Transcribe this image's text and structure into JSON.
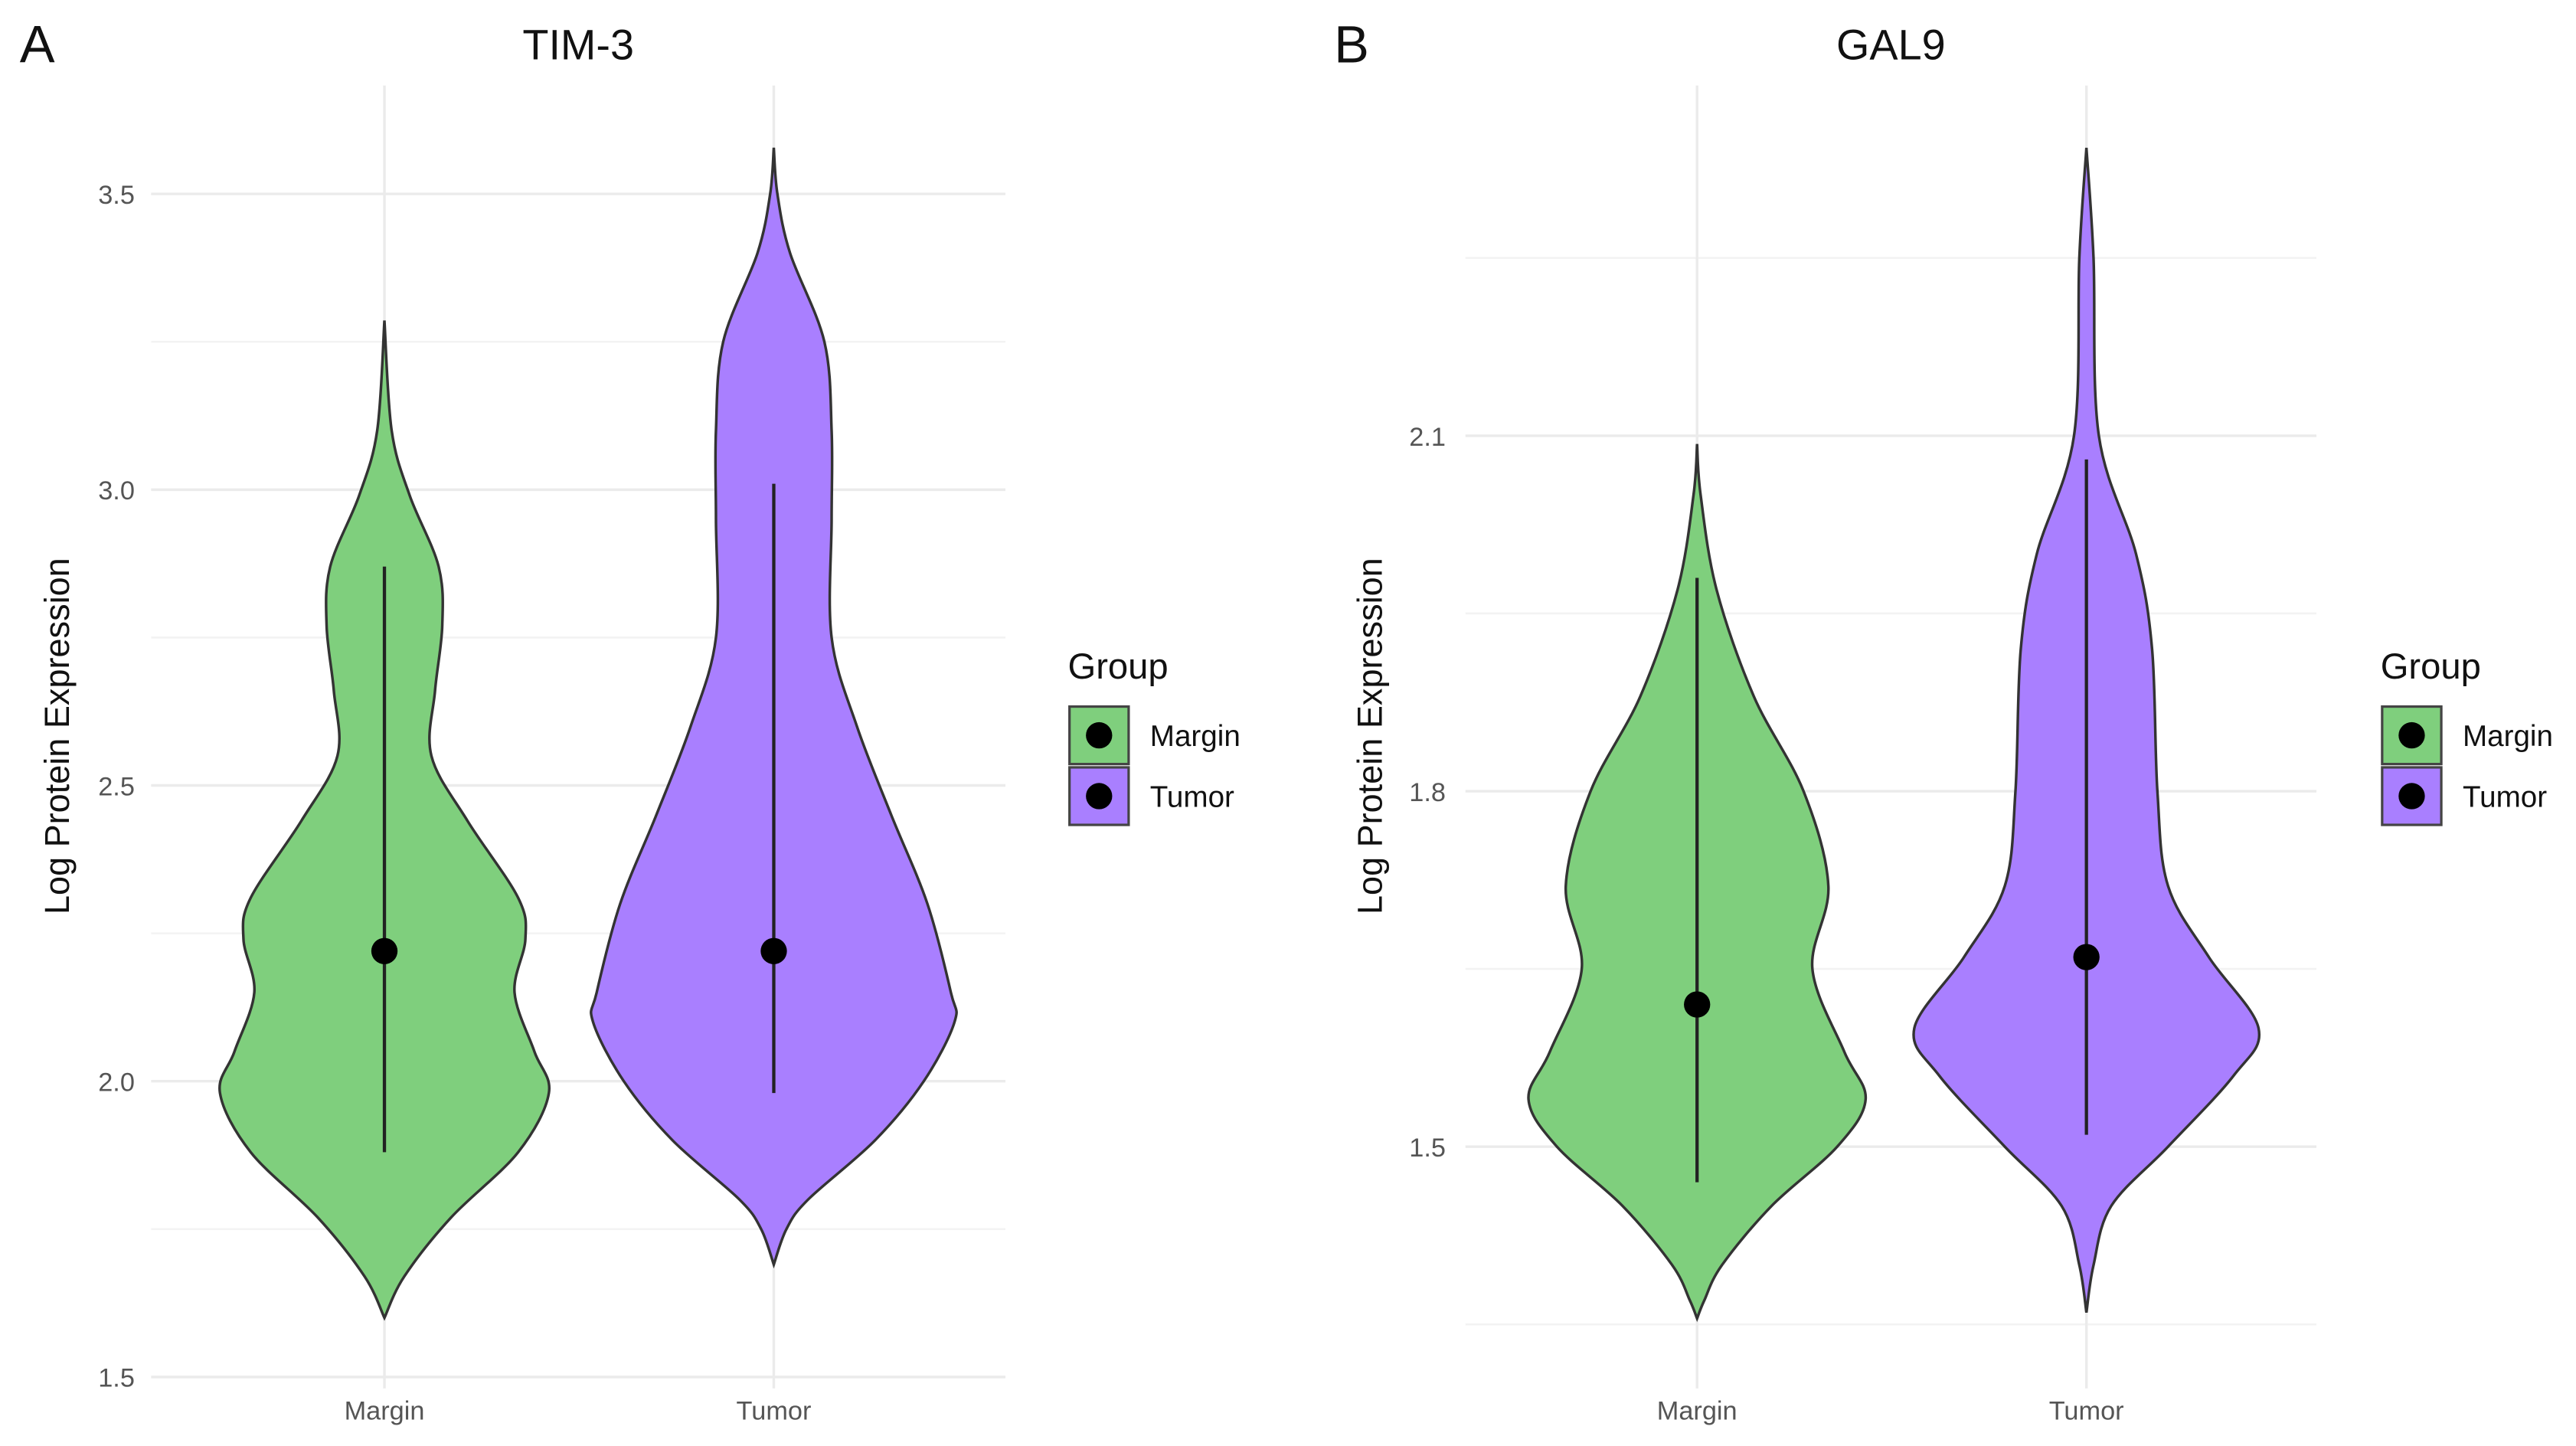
{
  "colors": {
    "Margin": "#7fcf7d",
    "Tumor": "#a97fff",
    "outline": "#333333",
    "point": "#000000"
  },
  "chart_data": [
    {
      "type": "violin",
      "panel_label": "A",
      "title": "TIM-3",
      "xlabel": "",
      "ylabel": "Log Protein Expression",
      "ylim": [
        1.5,
        3.5
      ],
      "yticks": [
        1.5,
        2.0,
        2.5,
        3.0,
        3.5
      ],
      "ytick_labels": [
        "1.5",
        "2.0",
        "2.5",
        "3.0",
        "3.5"
      ],
      "minor_yticks": [
        1.75,
        2.25,
        2.75,
        3.25
      ],
      "categories": [
        "Margin",
        "Tumor"
      ],
      "legend": {
        "title": "Group",
        "entries": [
          "Margin",
          "Tumor"
        ],
        "position": "right"
      },
      "series": [
        {
          "name": "Margin",
          "median": 2.22,
          "whisker": [
            1.88,
            2.87
          ],
          "profile": [
            [
              3.286,
              0
            ],
            [
              3.1,
              0.04
            ],
            [
              2.99,
              0.14
            ],
            [
              2.87,
              0.3
            ],
            [
              2.77,
              0.32
            ],
            [
              2.66,
              0.28
            ],
            [
              2.55,
              0.26
            ],
            [
              2.44,
              0.46
            ],
            [
              2.31,
              0.74
            ],
            [
              2.24,
              0.78
            ],
            [
              2.15,
              0.72
            ],
            [
              2.05,
              0.83
            ],
            [
              1.98,
              0.91
            ],
            [
              1.88,
              0.74
            ],
            [
              1.77,
              0.37
            ],
            [
              1.67,
              0.11
            ],
            [
              1.6,
              0
            ]
          ]
        },
        {
          "name": "Tumor",
          "median": 2.22,
          "whisker": [
            1.98,
            3.01
          ],
          "profile": [
            [
              3.578,
              0
            ],
            [
              3.5,
              0.02
            ],
            [
              3.4,
              0.09
            ],
            [
              3.25,
              0.28
            ],
            [
              3.1,
              0.32
            ],
            [
              2.95,
              0.32
            ],
            [
              2.75,
              0.32
            ],
            [
              2.6,
              0.46
            ],
            [
              2.45,
              0.65
            ],
            [
              2.3,
              0.85
            ],
            [
              2.15,
              0.98
            ],
            [
              2.1,
              1.0
            ],
            [
              2.0,
              0.83
            ],
            [
              1.9,
              0.56
            ],
            [
              1.8,
              0.19
            ],
            [
              1.75,
              0.07
            ],
            [
              1.69,
              0
            ]
          ]
        }
      ]
    },
    {
      "type": "violin",
      "panel_label": "B",
      "title": "GAL9",
      "xlabel": "",
      "ylabel": "Log Protein Expression",
      "ylim": [
        1.35,
        2.25
      ],
      "yticks": [
        1.5,
        1.8,
        2.1
      ],
      "ytick_labels": [
        "1.5",
        "1.8",
        "2.1"
      ],
      "minor_yticks": [
        1.35,
        1.65,
        1.95,
        2.25
      ],
      "categories": [
        "Margin",
        "Tumor"
      ],
      "legend": {
        "title": "Group",
        "entries": [
          "Margin",
          "Tumor"
        ],
        "position": "right"
      },
      "series": [
        {
          "name": "Margin",
          "median": 1.62,
          "whisker": [
            1.47,
            1.98
          ],
          "profile": [
            [
              2.093,
              0
            ],
            [
              2.05,
              0.02
            ],
            [
              1.97,
              0.11
            ],
            [
              1.88,
              0.32
            ],
            [
              1.8,
              0.6
            ],
            [
              1.72,
              0.74
            ],
            [
              1.65,
              0.65
            ],
            [
              1.58,
              0.83
            ],
            [
              1.54,
              0.95
            ],
            [
              1.5,
              0.79
            ],
            [
              1.45,
              0.42
            ],
            [
              1.4,
              0.14
            ],
            [
              1.37,
              0.04
            ],
            [
              1.355,
              0
            ]
          ]
        },
        {
          "name": "Tumor",
          "median": 1.66,
          "whisker": [
            1.51,
            2.08
          ],
          "profile": [
            [
              2.343,
              0
            ],
            [
              2.25,
              0.04
            ],
            [
              2.1,
              0.07
            ],
            [
              2.0,
              0.28
            ],
            [
              1.92,
              0.37
            ],
            [
              1.8,
              0.4
            ],
            [
              1.72,
              0.46
            ],
            [
              1.66,
              0.69
            ],
            [
              1.6,
              0.97
            ],
            [
              1.56,
              0.83
            ],
            [
              1.5,
              0.46
            ],
            [
              1.45,
              0.14
            ],
            [
              1.4,
              0.04
            ],
            [
              1.36,
              0
            ]
          ]
        }
      ]
    }
  ]
}
